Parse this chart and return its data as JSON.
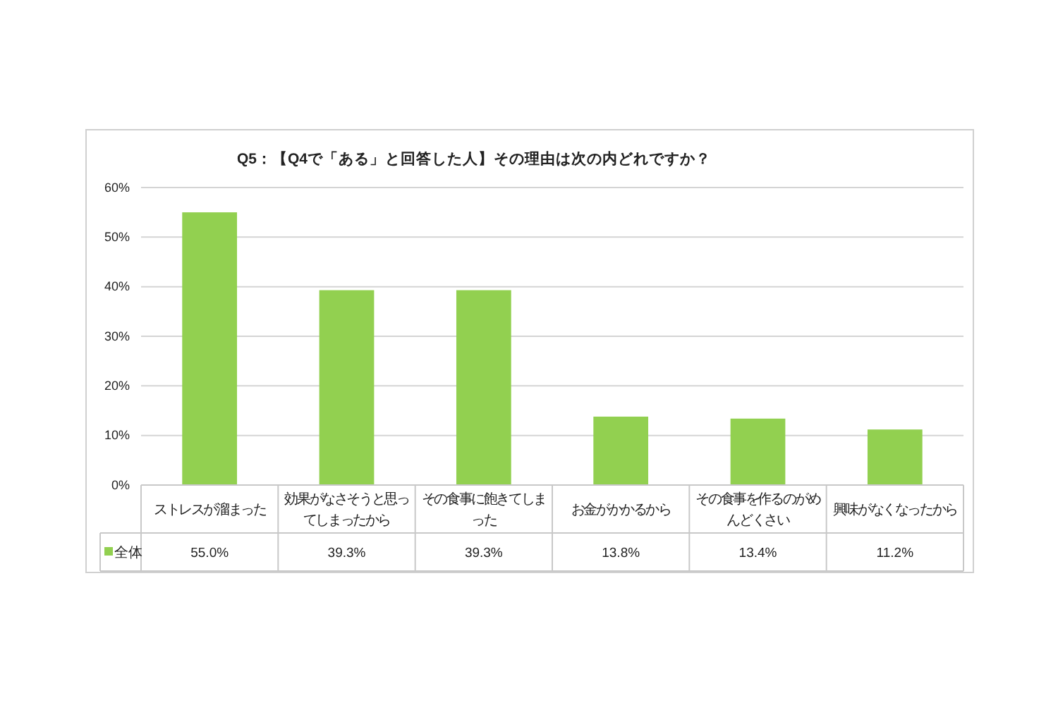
{
  "chart_data": {
    "type": "bar",
    "title": "Q5：【Q4で「ある」と回答した人】その理由は次の内どれですか？",
    "categories": [
      "ストレスが溜まった",
      "効果がなさそうと思ってしまったから",
      "その食事に飽きてしまった",
      "お金がかかるから",
      "その食事を作るのがめんどくさい",
      "興味がなくなったから"
    ],
    "series": [
      {
        "name": "全体",
        "color": "#92d050",
        "values": [
          55.0,
          39.3,
          39.3,
          13.8,
          13.4,
          11.2
        ],
        "value_labels": [
          "55.0%",
          "39.3%",
          "39.3%",
          "13.8%",
          "13.4%",
          "11.2%"
        ]
      }
    ],
    "ylim": [
      0,
      60
    ],
    "yticks": [
      {
        "value": 0,
        "label": "0%"
      },
      {
        "value": 10,
        "label": "10%"
      },
      {
        "value": 20,
        "label": "20%"
      },
      {
        "value": 30,
        "label": "30%"
      },
      {
        "value": 40,
        "label": "40%"
      },
      {
        "value": 50,
        "label": "50%"
      },
      {
        "value": 60,
        "label": "60%"
      }
    ],
    "grid": "y",
    "legend": "bottom left"
  }
}
